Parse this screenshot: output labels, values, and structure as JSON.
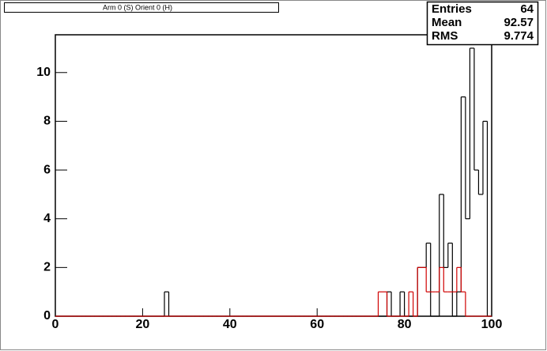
{
  "chart_data": {
    "type": "histogram",
    "title": "Arm 0 (S) Orient 0 (H)",
    "bins": [
      0,
      1,
      2,
      3,
      4,
      5,
      6,
      7,
      8,
      9,
      10,
      11,
      12,
      13,
      14,
      15,
      16,
      17,
      18,
      19,
      20,
      21,
      22,
      23,
      24,
      25,
      26,
      27,
      28,
      29,
      30,
      31,
      32,
      33,
      34,
      35,
      36,
      37,
      38,
      39,
      40,
      41,
      42,
      43,
      44,
      45,
      46,
      47,
      48,
      49,
      50,
      51,
      52,
      53,
      54,
      55,
      56,
      57,
      58,
      59,
      60,
      61,
      62,
      63,
      64,
      65,
      66,
      67,
      68,
      69,
      70,
      71,
      72,
      73,
      74,
      75,
      76,
      77,
      78,
      79,
      80,
      81,
      82,
      83,
      84,
      85,
      86,
      87,
      88,
      89,
      90,
      91,
      92,
      93,
      94,
      95,
      96,
      97,
      98,
      99,
      100
    ],
    "series": [
      {
        "color": "#000000",
        "values": [
          0,
          0,
          0,
          0,
          0,
          0,
          0,
          0,
          0,
          0,
          0,
          0,
          0,
          0,
          0,
          0,
          0,
          0,
          0,
          0,
          0,
          0,
          0,
          0,
          0,
          1,
          0,
          0,
          0,
          0,
          0,
          0,
          0,
          0,
          0,
          0,
          0,
          0,
          0,
          0,
          0,
          0,
          0,
          0,
          0,
          0,
          0,
          0,
          0,
          0,
          0,
          0,
          0,
          0,
          0,
          0,
          0,
          0,
          0,
          0,
          0,
          0,
          0,
          0,
          0,
          0,
          0,
          0,
          0,
          0,
          0,
          0,
          0,
          0,
          0,
          0,
          1,
          0,
          0,
          1,
          0,
          0,
          0,
          2,
          2,
          3,
          0,
          0,
          5,
          2,
          3,
          0,
          1,
          9,
          4,
          11,
          6,
          5,
          8,
          0
        ]
      },
      {
        "color": "#d00000",
        "values": [
          0,
          0,
          0,
          0,
          0,
          0,
          0,
          0,
          0,
          0,
          0,
          0,
          0,
          0,
          0,
          0,
          0,
          0,
          0,
          0,
          0,
          0,
          0,
          0,
          0,
          0,
          0,
          0,
          0,
          0,
          0,
          0,
          0,
          0,
          0,
          0,
          0,
          0,
          0,
          0,
          0,
          0,
          0,
          0,
          0,
          0,
          0,
          0,
          0,
          0,
          0,
          0,
          0,
          0,
          0,
          0,
          0,
          0,
          0,
          0,
          0,
          0,
          0,
          0,
          0,
          0,
          0,
          0,
          0,
          0,
          0,
          0,
          0,
          0,
          1,
          1,
          0,
          0,
          0,
          0,
          0,
          1,
          0,
          2,
          2,
          1,
          1,
          1,
          2,
          1,
          1,
          1,
          2,
          1,
          0,
          0,
          0,
          0,
          0,
          0
        ]
      }
    ],
    "xlim": [
      0,
      100
    ],
    "xticks": [
      0,
      20,
      40,
      60,
      80,
      100
    ],
    "ylim": [
      0,
      11.55
    ],
    "yticks": [
      0,
      2,
      4,
      6,
      8,
      10
    ],
    "stats": [
      {
        "label": "Entries",
        "value": "64"
      },
      {
        "label": "Mean",
        "value": "92.57"
      },
      {
        "label": "RMS",
        "value": "9.774"
      }
    ]
  }
}
